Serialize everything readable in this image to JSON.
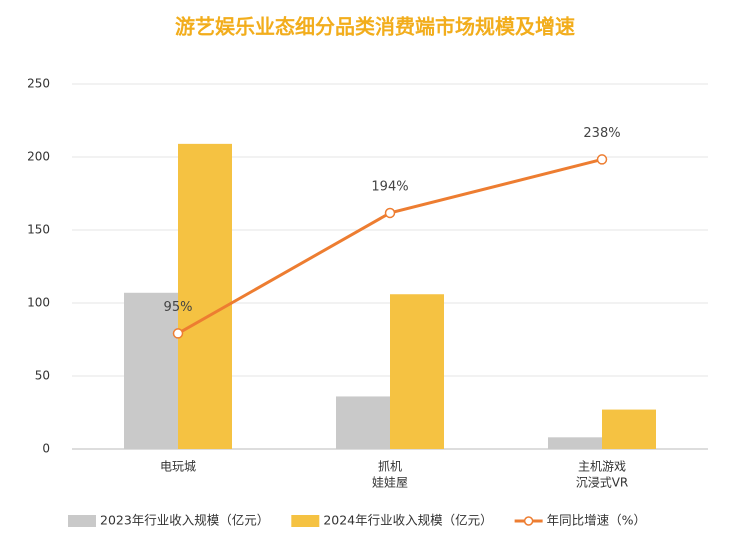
{
  "chart_data": {
    "type": "bar-line",
    "title": "游艺娱乐业态细分品类消费端市场规模及增速",
    "categories": [
      [
        "电玩城"
      ],
      [
        "抓机",
        "娃娃屋"
      ],
      [
        "主机游戏",
        "沉浸式VR"
      ]
    ],
    "series": [
      {
        "name": "2023年行业收入规模（亿元）",
        "color": "#c9c9c9",
        "type": "bar",
        "values": [
          107,
          36,
          8
        ]
      },
      {
        "name": "2024年行业收入规模（亿元）",
        "color": "#f5c242",
        "type": "bar",
        "values": [
          209,
          106,
          27
        ]
      },
      {
        "name": "年同比增速（%）",
        "color": "#ed7d31",
        "type": "line",
        "axis": "y2",
        "values": [
          95,
          194,
          238
        ],
        "value_labels": [
          "95%",
          "194%",
          "238%"
        ]
      }
    ],
    "ylim": [
      0,
      250
    ],
    "yticks": [
      0,
      50,
      100,
      150,
      200,
      250
    ],
    "y2lim": [
      0,
      300
    ],
    "grid": true,
    "legend": "bottom"
  }
}
